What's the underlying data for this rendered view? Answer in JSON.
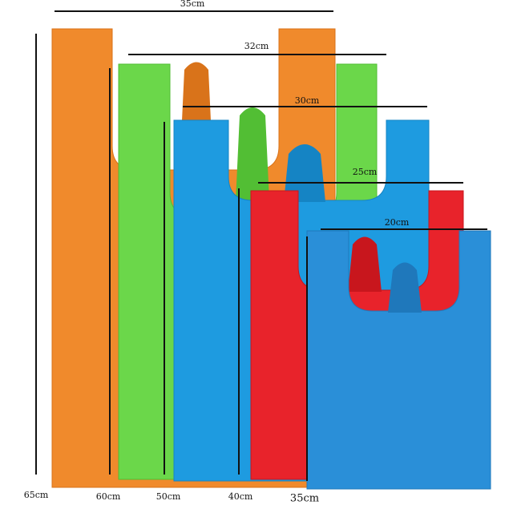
{
  "widths": [
    "35cm",
    "32cm",
    "30cm",
    "25cm",
    "20cm"
  ],
  "heights": [
    "65cm",
    "60cm",
    "50cm",
    "40cm",
    "35cm"
  ]
}
